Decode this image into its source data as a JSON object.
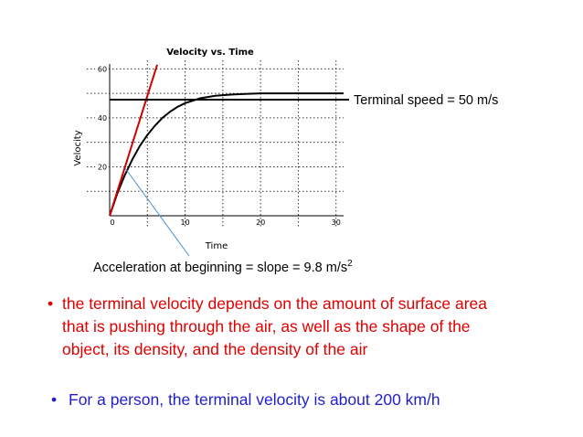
{
  "chart_data": {
    "type": "line",
    "title": "Velocity vs. Time",
    "xlabel": "Time",
    "ylabel": "Velocity",
    "xlim": [
      0,
      31
    ],
    "ylim": [
      0,
      62
    ],
    "x_ticks": [
      0,
      10,
      20,
      30
    ],
    "y_ticks": [
      20,
      40,
      60
    ],
    "grid": true,
    "series": [
      {
        "color": "#000000",
        "x": [
          0,
          1,
          2,
          3,
          4,
          5,
          6,
          7,
          8,
          9,
          10,
          12,
          14,
          16,
          18,
          20,
          25,
          28,
          31
        ],
        "y": [
          0,
          9.0,
          16.5,
          23.0,
          28.5,
          33.0,
          36.8,
          40.0,
          42.5,
          44.5,
          46.0,
          48.0,
          49.0,
          49.5,
          49.8,
          50,
          50,
          50,
          50
        ]
      },
      {
        "color": "#d00000",
        "x": [
          0,
          6.3
        ],
        "y": [
          0,
          61.7
        ]
      }
    ],
    "annotations": [
      {
        "text": "Terminal speed = 50 m/s"
      },
      {
        "text": "Acceleration at beginning = slope = 9.8 m/s",
        "superscript": "2"
      }
    ]
  },
  "bullets": [
    {
      "color": "#e00000",
      "lines": [
        "the terminal velocity depends on the amount of surface area",
        "that is pushing through the air, as well as the shape of the",
        "object, its density, and the density of the air"
      ]
    },
    {
      "color": "#1f1fd0",
      "lines": [
        "For a person, the terminal velocity is about 200 km/h"
      ]
    }
  ],
  "bullet_symbol": "•",
  "colors": {
    "pointer_line": "#4a8fd0",
    "grid": "#333333"
  }
}
